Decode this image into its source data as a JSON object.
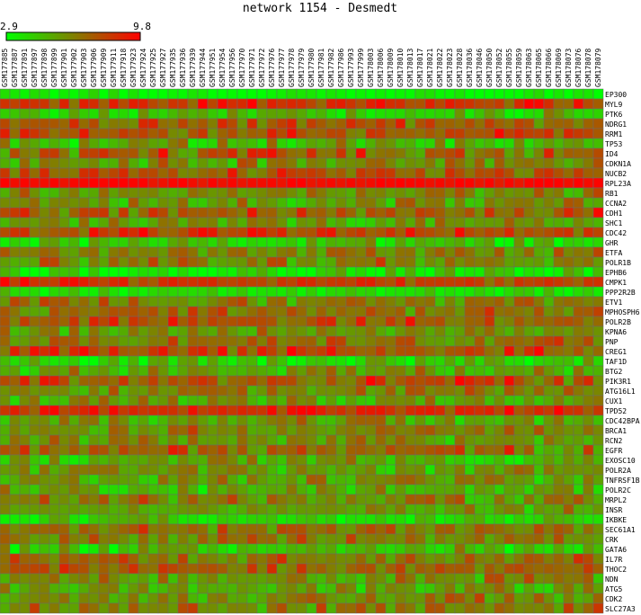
{
  "title": "network 1154 - Desmedt",
  "scale": {
    "min_label": "2.9",
    "max_label": "9.8",
    "min": 2.9,
    "max": 9.8,
    "low_color": "#00ff00",
    "mid_color": "#808000",
    "high_color": "#ff0000"
  },
  "chart_data": {
    "type": "heatmap",
    "title": "network 1154 - Desmedt",
    "samples": [
      "GSM177885",
      "GSM177887",
      "GSM177891",
      "GSM177897",
      "GSM177898",
      "GSM177899",
      "GSM177901",
      "GSM177902",
      "GSM177903",
      "GSM177906",
      "GSM177909",
      "GSM177911",
      "GSM177918",
      "GSM177923",
      "GSM177924",
      "GSM177925",
      "GSM177927",
      "GSM177935",
      "GSM177936",
      "GSM177939",
      "GSM177944",
      "GSM177951",
      "GSM177954",
      "GSM177956",
      "GSM177970",
      "GSM177971",
      "GSM177972",
      "GSM177976",
      "GSM177977",
      "GSM177978",
      "GSM177979",
      "GSM177980",
      "GSM177981",
      "GSM177982",
      "GSM177986",
      "GSM177993",
      "GSM177999",
      "GSM178003",
      "GSM178006",
      "GSM178009",
      "GSM178010",
      "GSM178013",
      "GSM178017",
      "GSM178021",
      "GSM178022",
      "GSM178023",
      "GSM178028",
      "GSM178036",
      "GSM178046",
      "GSM178050",
      "GSM178052",
      "GSM178055",
      "GSM178059",
      "GSM178063",
      "GSM178065",
      "GSM178066",
      "GSM178069",
      "GSM178073",
      "GSM178076",
      "GSM178078",
      "GSM178079"
    ],
    "genes": [
      "EP300",
      "MYL9",
      "PTK6",
      "NDRG1",
      "RRM1",
      "TP53",
      "ID4",
      "CDKN1A",
      "NUCB2",
      "RPL23A",
      "RB1",
      "CCNA2",
      "CDH1",
      "SHC1",
      "CDC42",
      "GHR",
      "ETFA",
      "POLR1B",
      "EPHB6",
      "CMPK1",
      "PPP2R2B",
      "ETV1",
      "MPHOSPH6",
      "POLR2B",
      "KPNA6",
      "PNP",
      "CREG1",
      "TAF1D",
      "BTG2",
      "PIK3R1",
      "ATG16L1",
      "CUX1",
      "TPD52",
      "CDC42BPA",
      "BRCA1",
      "RCN2",
      "EGFR",
      "EXOSC10",
      "POLR2A",
      "TNFRSF1B",
      "POLR2C",
      "MRPL2",
      "INSR",
      "IKBKE",
      "SEC61A1",
      "CRK",
      "GATA6",
      "IL7R",
      "THOC2",
      "NDN",
      "ATG5",
      "CDK2",
      "SLC27A3"
    ],
    "row_mean": [
      3.2,
      8.6,
      4.8,
      7.2,
      7.6,
      5.0,
      7.0,
      6.0,
      7.4,
      9.6,
      6.2,
      5.6,
      7.4,
      5.6,
      8.0,
      4.4,
      6.6,
      6.4,
      3.8,
      8.2,
      3.8,
      6.2,
      6.8,
      7.4,
      6.0,
      6.6,
      7.8,
      4.2,
      5.4,
      7.6,
      6.2,
      5.4,
      8.6,
      5.6,
      6.4,
      5.8,
      7.0,
      5.2,
      5.6,
      5.6,
      5.2,
      6.2,
      5.6,
      4.2,
      6.8,
      6.6,
      4.4,
      6.8,
      7.0,
      6.0,
      5.6,
      6.0,
      6.4
    ],
    "row_spread": [
      0.6,
      1.4,
      1.4,
      1.3,
      1.3,
      1.5,
      1.8,
      1.3,
      1.4,
      0.4,
      1.2,
      1.4,
      1.6,
      1.2,
      1.4,
      1.6,
      1.5,
      1.6,
      1.4,
      1.1,
      0.9,
      1.3,
      1.3,
      1.4,
      1.4,
      1.3,
      1.4,
      1.5,
      1.5,
      1.6,
      1.3,
      1.4,
      1.2,
      1.3,
      1.4,
      1.4,
      1.7,
      1.4,
      1.3,
      1.3,
      1.4,
      1.4,
      1.3,
      1.3,
      1.4,
      1.3,
      1.6,
      1.4,
      1.3,
      1.3,
      1.3,
      1.4,
      1.3
    ],
    "noise_seed": 1154
  }
}
